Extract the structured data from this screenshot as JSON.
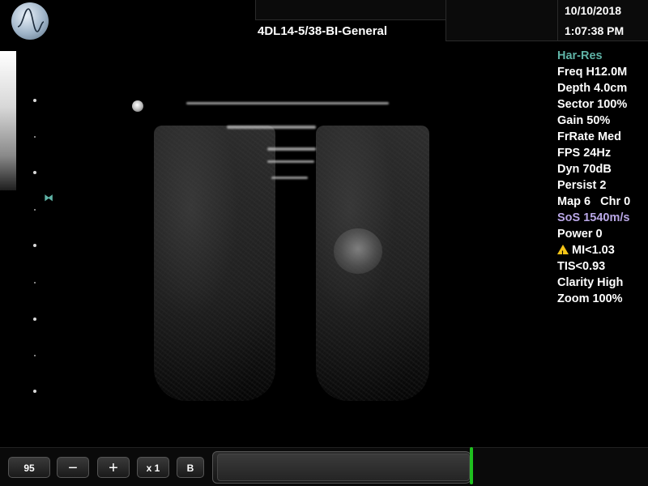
{
  "header": {
    "probe_preset": "4DL14-5/38-BI-General",
    "date": "10/10/2018",
    "time": "1:07:38 PM",
    "logo_icon": "waveform-logo-icon"
  },
  "parameters": {
    "harmonic": "Har-Res",
    "frequency": "Freq H12.0M",
    "depth": "Depth 4.0cm",
    "sector": "Sector 100%",
    "gain": "Gain 50%",
    "frame_rate": "FrRate Med",
    "fps": "FPS 24Hz",
    "dynamic_range": "Dyn 70dB",
    "persistence": "Persist 2",
    "map_chroma": "Map 6   Chr 0",
    "speed_of_sound": "SoS 1540m/s",
    "power": "Power 0",
    "mechanical_index": "MI<1.03",
    "thermal_index": "TIS<0.93",
    "clarity": "Clarity High",
    "zoom": "Zoom 100%"
  },
  "colors": {
    "accent_teal": "#5fb3a6",
    "accent_lavender": "#b9a7e6",
    "warning_yellow": "#f5c518",
    "cine_green": "#1ec01e"
  },
  "toolbar": {
    "value_box": "95",
    "minus_label": "−",
    "plus_label": "+",
    "multiplier_label": "x 1",
    "mode_label": "B"
  }
}
